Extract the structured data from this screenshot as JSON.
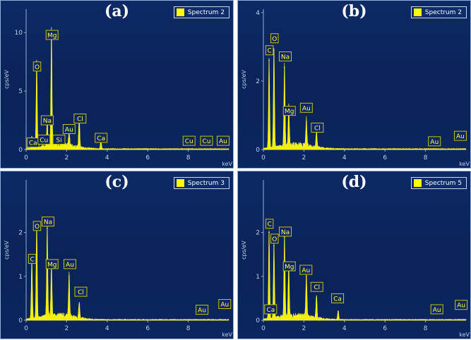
{
  "chart_data": [
    {
      "type": "line",
      "panel_label": "(a)",
      "legend": "Spectrum 2",
      "xlabel": "keV",
      "ylabel": "cps/eV",
      "xlim": [
        0,
        10
      ],
      "ylim": [
        0,
        12
      ],
      "xticks": [
        0,
        2,
        4,
        6,
        8
      ],
      "yticks": [
        0,
        5,
        10
      ],
      "peaks": [
        {
          "x": 0.28,
          "y": 1.0
        },
        {
          "x": 0.52,
          "y": 7.5
        },
        {
          "x": 1.04,
          "y": 2.2
        },
        {
          "x": 1.25,
          "y": 10.0
        },
        {
          "x": 1.74,
          "y": 0.8
        },
        {
          "x": 2.12,
          "y": 1.3
        },
        {
          "x": 2.62,
          "y": 2.5
        },
        {
          "x": 3.69,
          "y": 0.7
        }
      ],
      "annotations": [
        {
          "text": "Ca",
          "x": 0.34,
          "y": 0.6
        },
        {
          "text": "O",
          "x": 0.54,
          "y": 7.1
        },
        {
          "text": "Cu",
          "x": 0.88,
          "y": 0.85
        },
        {
          "text": "Na",
          "x": 1.04,
          "y": 2.5
        },
        {
          "text": "Mg",
          "x": 1.28,
          "y": 9.8
        },
        {
          "text": "Si",
          "x": 1.62,
          "y": 0.85
        },
        {
          "text": "Au",
          "x": 2.12,
          "y": 1.75
        },
        {
          "text": "Cl",
          "x": 2.66,
          "y": 2.65
        },
        {
          "text": "Ca",
          "x": 3.7,
          "y": 1.0
        },
        {
          "text": "Cu",
          "x": 8.04,
          "y": 0.75
        },
        {
          "text": "Cu",
          "x": 8.9,
          "y": 0.75
        },
        {
          "text": "Au",
          "x": 9.72,
          "y": 0.75
        }
      ]
    },
    {
      "type": "line",
      "panel_label": "(b)",
      "legend": "Spectrum 2",
      "xlabel": "keV",
      "ylabel": "cps/eV",
      "xlim": [
        0,
        10
      ],
      "ylim": [
        0,
        4.1
      ],
      "xticks": [
        0,
        2,
        4,
        6,
        8
      ],
      "yticks": [
        0,
        2,
        4
      ],
      "peaks": [
        {
          "x": 0.28,
          "y": 2.6
        },
        {
          "x": 0.52,
          "y": 2.9
        },
        {
          "x": 1.04,
          "y": 2.4
        },
        {
          "x": 1.25,
          "y": 1.2
        },
        {
          "x": 2.12,
          "y": 0.8
        },
        {
          "x": 2.62,
          "y": 0.45
        }
      ],
      "annotations": [
        {
          "text": "C",
          "x": 0.3,
          "y": 2.9
        },
        {
          "text": "O",
          "x": 0.55,
          "y": 3.25
        },
        {
          "text": "Na",
          "x": 1.08,
          "y": 2.72
        },
        {
          "text": "Mg",
          "x": 1.28,
          "y": 1.13
        },
        {
          "text": "Au",
          "x": 2.12,
          "y": 1.22
        },
        {
          "text": "Cl",
          "x": 2.66,
          "y": 0.64
        },
        {
          "text": "Au",
          "x": 8.44,
          "y": 0.24
        },
        {
          "text": "Au",
          "x": 9.72,
          "y": 0.4
        }
      ]
    },
    {
      "type": "line",
      "panel_label": "(c)",
      "legend": "Spectrum 3",
      "xlabel": "keV",
      "ylabel": "cps/eV",
      "xlim": [
        0,
        10
      ],
      "ylim": [
        0,
        3.2
      ],
      "xticks": [
        0,
        2,
        4,
        6,
        8
      ],
      "yticks": [
        0,
        1,
        2
      ],
      "peaks": [
        {
          "x": 0.28,
          "y": 1.4
        },
        {
          "x": 0.52,
          "y": 2.2
        },
        {
          "x": 1.04,
          "y": 2.1
        },
        {
          "x": 1.25,
          "y": 1.2
        },
        {
          "x": 2.12,
          "y": 1.0
        },
        {
          "x": 2.62,
          "y": 0.35
        }
      ],
      "annotations": [
        {
          "text": "C",
          "x": 0.3,
          "y": 1.4
        },
        {
          "text": "O",
          "x": 0.54,
          "y": 2.15
        },
        {
          "text": "Na",
          "x": 1.08,
          "y": 2.25
        },
        {
          "text": "Mg",
          "x": 1.28,
          "y": 1.28
        },
        {
          "text": "Au",
          "x": 2.16,
          "y": 1.28
        },
        {
          "text": "Cl",
          "x": 2.7,
          "y": 0.65
        },
        {
          "text": "Au",
          "x": 8.68,
          "y": 0.24
        },
        {
          "text": "Au",
          "x": 9.8,
          "y": 0.37
        }
      ]
    },
    {
      "type": "line",
      "panel_label": "(d)",
      "legend": "Spectrum 5",
      "xlabel": "keV",
      "ylabel": "cps/eV",
      "xlim": [
        0,
        10
      ],
      "ylim": [
        0,
        3.2
      ],
      "xticks": [
        0,
        2,
        4,
        6,
        8
      ],
      "yticks": [
        0,
        1,
        2
      ],
      "peaks": [
        {
          "x": 0.28,
          "y": 2.0
        },
        {
          "x": 0.52,
          "y": 1.7
        },
        {
          "x": 1.04,
          "y": 1.9
        },
        {
          "x": 1.25,
          "y": 1.2
        },
        {
          "x": 2.12,
          "y": 1.0
        },
        {
          "x": 2.62,
          "y": 0.5
        },
        {
          "x": 3.69,
          "y": 0.2
        }
      ],
      "annotations": [
        {
          "text": "C",
          "x": 0.3,
          "y": 2.2
        },
        {
          "text": "Ca",
          "x": 0.36,
          "y": 0.25
        },
        {
          "text": "O",
          "x": 0.55,
          "y": 1.86
        },
        {
          "text": "Na",
          "x": 1.08,
          "y": 2.02
        },
        {
          "text": "Mg",
          "x": 1.28,
          "y": 1.23
        },
        {
          "text": "Au",
          "x": 2.1,
          "y": 1.15
        },
        {
          "text": "Cl",
          "x": 2.64,
          "y": 0.76
        },
        {
          "text": "Ca",
          "x": 3.66,
          "y": 0.5
        },
        {
          "text": "Au",
          "x": 8.56,
          "y": 0.25
        },
        {
          "text": "Au",
          "x": 9.76,
          "y": 0.35
        }
      ]
    }
  ]
}
